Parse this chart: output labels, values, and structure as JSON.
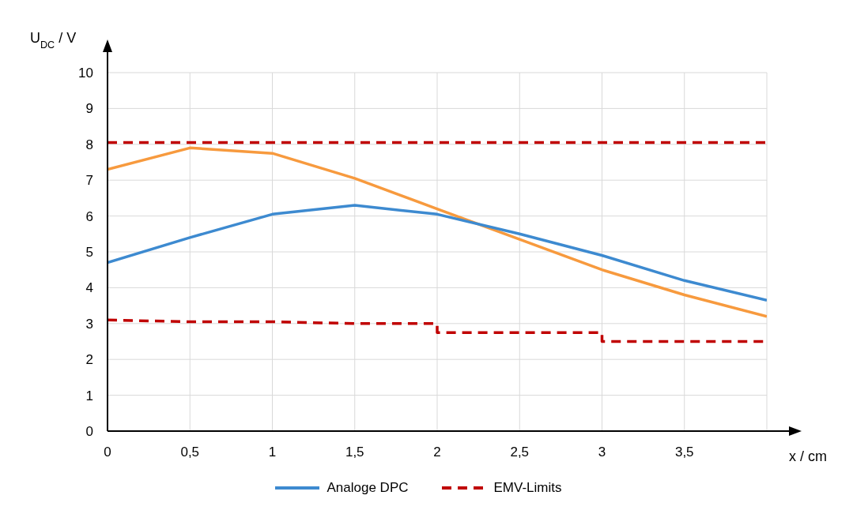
{
  "chart_data": {
    "type": "line",
    "xlabel": "x / cm",
    "ylabel": "U$_{DC}$ / V",
    "xlim": [
      0,
      4
    ],
    "xticks": [
      0,
      {
        "value": 0.5,
        "label": "0,5"
      },
      1,
      {
        "value": 1.5,
        "label": "1,5"
      },
      2,
      {
        "value": 2.5,
        "label": "2,5"
      },
      3,
      {
        "value": 3.5,
        "label": "3,5"
      },
      {
        "value": 4,
        "label": null
      }
    ],
    "ylim": [
      0,
      10
    ],
    "yticks": [
      0,
      1,
      2,
      3,
      4,
      5,
      6,
      7,
      8,
      9,
      10
    ],
    "grid": true,
    "legend": "bottom",
    "marker": "none",
    "series": [
      {
        "color": "#f79a3e",
        "x": [
          0,
          0.5,
          1,
          1.5,
          2,
          2.5,
          3,
          3.5,
          4
        ],
        "values": [
          7.3,
          7.9,
          7.75,
          7.05,
          6.2,
          5.35,
          4.5,
          3.8,
          3.2
        ]
      },
      {
        "name": "Analoge DPC",
        "color": "#3d8ad0",
        "x": [
          0,
          0.5,
          1,
          1.5,
          2,
          2.5,
          3,
          3.5,
          4
        ],
        "values": [
          4.7,
          5.4,
          6.05,
          6.3,
          6.05,
          5.5,
          4.9,
          4.2,
          3.65
        ]
      },
      {
        "name": "EMV-Limits",
        "color": "#c00000",
        "line_style": "dashed",
        "x": [
          0,
          0.5,
          1,
          1.5,
          2,
          2,
          3,
          3,
          4
        ],
        "values": [
          3.1,
          3.05,
          3.05,
          3.0,
          3.0,
          2.75,
          2.75,
          2.5,
          2.5
        ]
      },
      {
        "color": "#c00000",
        "line_style": "dashed",
        "x": [
          0,
          4
        ],
        "values": [
          8.05,
          8.05
        ]
      }
    ]
  }
}
